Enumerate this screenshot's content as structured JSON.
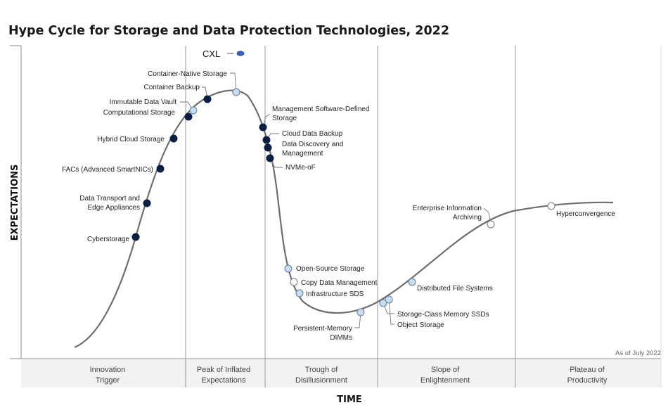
{
  "title": "Hype Cycle for Storage and Data Protection Technologies, 2022",
  "y_axis_title": "EXPECTATIONS",
  "x_axis_title": "TIME",
  "as_of": "As of July 2022",
  "colors": {
    "curve": "#6e6e6e",
    "divider": "#9a9a9a",
    "dot_dark": "#0b1f45",
    "dot_light": "#c7dcef",
    "dot_white": "#ffffff",
    "cxl_dot": "#3d63b8",
    "phase_band": "#f2f2f2"
  },
  "chart_data": {
    "type": "scatter",
    "title": "Hype Cycle for Storage and Data Protection Technologies, 2022",
    "xlabel": "TIME",
    "ylabel": "EXPECTATIONS",
    "phases": [
      {
        "lines": [
          "Innovation",
          "Trigger"
        ]
      },
      {
        "lines": [
          "Peak of Inflated",
          "Expectations"
        ]
      },
      {
        "lines": [
          "Trough of",
          "Disillusionment"
        ]
      },
      {
        "lines": [
          "Slope of",
          "Enlightenment"
        ]
      },
      {
        "lines": [
          "Plateau of",
          "Productivity"
        ]
      }
    ],
    "legend_items": [
      {
        "name": "CXL"
      }
    ],
    "points": [
      {
        "name": "Cyberstorage",
        "marker": "dark"
      },
      {
        "name": "Data Transport and Edge Appliances",
        "lines": [
          "Data Transport and",
          "Edge Appliances"
        ],
        "marker": "dark"
      },
      {
        "name": "FACs (Advanced SmartNICs)",
        "marker": "dark"
      },
      {
        "name": "Hybrid Cloud Storage",
        "marker": "dark"
      },
      {
        "name": "Computational Storage",
        "marker": "dark"
      },
      {
        "name": "Immutable Data Vault",
        "marker": "light"
      },
      {
        "name": "Container Backup",
        "marker": "dark"
      },
      {
        "name": "Container-Native Storage",
        "marker": "light"
      },
      {
        "name": "Management Software-Defined Storage",
        "lines": [
          "Management Software-Defined",
          "Storage"
        ],
        "marker": "dark"
      },
      {
        "name": "Cloud Data Backup",
        "marker": "dark"
      },
      {
        "name": "Data Discovery and Management",
        "lines": [
          "Data Discovery and",
          "Management"
        ],
        "marker": "dark"
      },
      {
        "name": "NVMe-oF",
        "marker": "dark"
      },
      {
        "name": "Open-Source Storage",
        "marker": "light"
      },
      {
        "name": "Copy Data Management",
        "marker": "white"
      },
      {
        "name": "Infrastructure SDS",
        "marker": "light"
      },
      {
        "name": "Persistent-Memory DIMMs",
        "lines": [
          "Persistent-Memory",
          "DIMMs"
        ],
        "marker": "light"
      },
      {
        "name": "Storage-Class Memory SSDs",
        "marker": "light"
      },
      {
        "name": "Object Storage",
        "marker": "light"
      },
      {
        "name": "Distributed File Systems",
        "marker": "light"
      },
      {
        "name": "Enterprise Information Archiving",
        "lines": [
          "Enterprise Information",
          "Archiving"
        ],
        "marker": "white"
      },
      {
        "name": "Hyperconvergence",
        "marker": "white"
      }
    ]
  }
}
